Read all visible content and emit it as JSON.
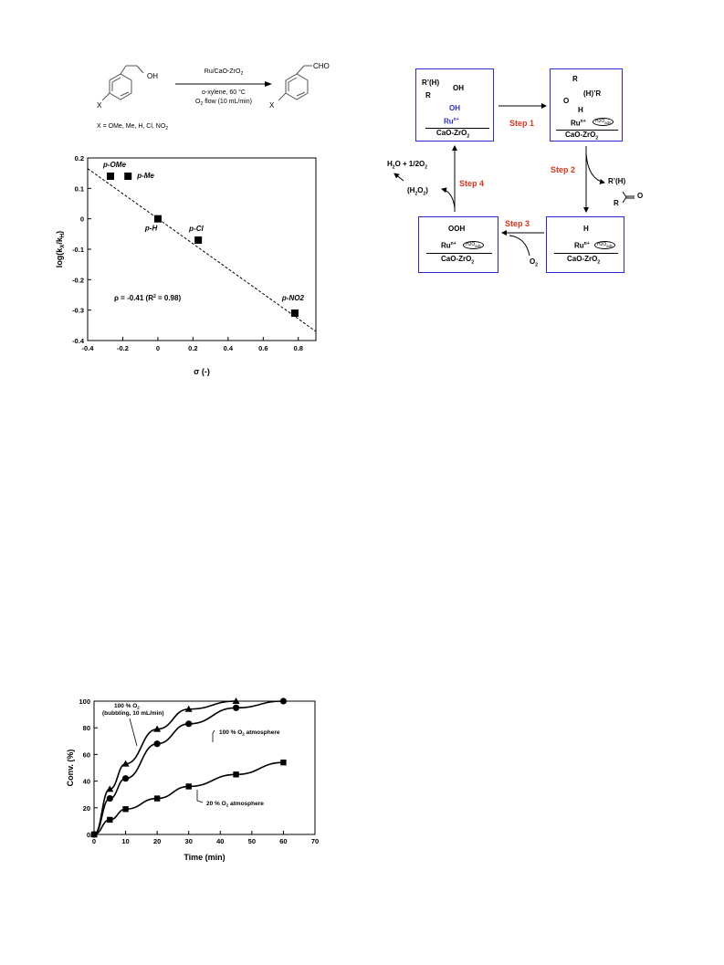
{
  "reaction": {
    "reagent_line1": "Ru/CaO-ZrO",
    "reagent_line1_sub": "2",
    "reagent_line2": "o-xylene, 60 °C",
    "reagent_line3_a": "O",
    "reagent_line3_sub": "2",
    "reagent_line3_b": " flow (10 mL/min)",
    "reactant_oh": "OH",
    "reactant_x": "X",
    "product_cho": "CHO",
    "product_x": "X",
    "substituents": "X = OMe, Me, H, Cl, NO",
    "substituents_sub": "2"
  },
  "mechanism": {
    "box1": {
      "r_top": "R’(H)",
      "oh": "OH",
      "r": "R",
      "oh_blue": "OH",
      "ru": "Ru",
      "ru_sup": "n+",
      "support": "CaO-ZrO",
      "support_sub": "2"
    },
    "box2": {
      "r": "R",
      "h_r": "(H)’R",
      "o": "O",
      "h": "H",
      "ru": "Ru",
      "ru_sup": "n+",
      "h2o": "H2O",
      "h2o_sub": "ads",
      "support": "CaO-ZrO",
      "support_sub": "2"
    },
    "box3": {
      "h": "H",
      "ru": "Ru",
      "ru_sup": "n+",
      "h2o": "H2O",
      "h2o_sub": "ads",
      "support": "CaO-ZrO",
      "support_sub": "2"
    },
    "box4": {
      "ooh": "OOH",
      "ru": "Ru",
      "ru_sup": "n+",
      "h2o": "H2O",
      "h2o_sub": "ads",
      "support": "CaO-ZrO",
      "support_sub": "2"
    },
    "step1": "Step 1",
    "step2": "Step 2",
    "step3": "Step 3",
    "step4": "Step 4",
    "product_rh": "R’(H)",
    "product_r": "R",
    "product_o": "O",
    "o2": "O",
    "o2_sub": "2",
    "water_a": "H",
    "water_sub": "2",
    "water_b": "O + 1/2O",
    "water_sub2": "2",
    "h2o2_a": "(H",
    "h2o2_sub1": "2",
    "h2o2_b": "O",
    "h2o2_sub2": "2",
    "h2o2_c": ")"
  },
  "chart_data": [
    {
      "type": "scatter",
      "title": "",
      "xlabel": "σ (-)",
      "ylabel": "log(k",
      "ylabel_sub1": "X",
      "ylabel_mid": "/k",
      "ylabel_sub2": "H",
      "ylabel_end": ")",
      "xlim": [
        -0.4,
        0.9
      ],
      "ylim": [
        -0.4,
        0.2
      ],
      "xticks": [
        "-0.4",
        "-0.2",
        "0",
        "0.2",
        "0.4",
        "0.6",
        "0.8"
      ],
      "yticks": [
        "0.2",
        "0.1",
        "0",
        "-0.1",
        "-0.2",
        "-0.3",
        "-0.4"
      ],
      "points": [
        {
          "label": "p-OMe",
          "x": -0.27,
          "y": 0.14
        },
        {
          "label": "p-Me",
          "x": -0.17,
          "y": 0.14
        },
        {
          "label": "p-H",
          "x": 0.0,
          "y": 0.0
        },
        {
          "label": "p-Cl",
          "x": 0.23,
          "y": -0.07
        },
        {
          "label": "p-NO2",
          "x": 0.78,
          "y": -0.31
        }
      ],
      "fit": {
        "x1": -0.4,
        "y1": 0.165,
        "x2": 0.9,
        "y2": -0.37
      },
      "annotation": "ρ = -0.41 (R",
      "annotation_sup": "2",
      "annotation_end": " = 0.98)"
    },
    {
      "type": "line",
      "title": "",
      "xlabel": "Time (min)",
      "ylabel": "Conv. (%)",
      "xlim": [
        0,
        70
      ],
      "ylim": [
        0,
        100
      ],
      "xticks": [
        "0",
        "10",
        "20",
        "30",
        "40",
        "50",
        "60",
        "70"
      ],
      "yticks": [
        "0",
        "20",
        "40",
        "60",
        "80",
        "100"
      ],
      "series": [
        {
          "name": "100 % O2 (bubbling, 10 mL/min)",
          "marker": "triangle",
          "x": [
            0,
            5,
            10,
            20,
            30,
            45
          ],
          "values": [
            0,
            34,
            53,
            79,
            94,
            100
          ]
        },
        {
          "name": "100 % O2 atmosphere",
          "marker": "circle",
          "x": [
            0,
            5,
            10,
            20,
            30,
            45,
            60
          ],
          "values": [
            0,
            27,
            42,
            68,
            83,
            95,
            100
          ]
        },
        {
          "name": "20 % O2 atmosphere",
          "marker": "square",
          "x": [
            0,
            5,
            10,
            20,
            30,
            45,
            60
          ],
          "values": [
            0,
            11,
            19,
            27,
            36,
            45,
            54
          ]
        }
      ],
      "labels": {
        "s1_a": "100 % O",
        "s1_sub": "2",
        "s1_b": "(bubbling, 10 mL/min)",
        "s2_a": "100 % O",
        "s2_sub": "2",
        "s2_b": " atmosphere",
        "s3_a": "20 % O",
        "s3_sub": "2",
        "s3_b": " atmosphere"
      }
    }
  ]
}
